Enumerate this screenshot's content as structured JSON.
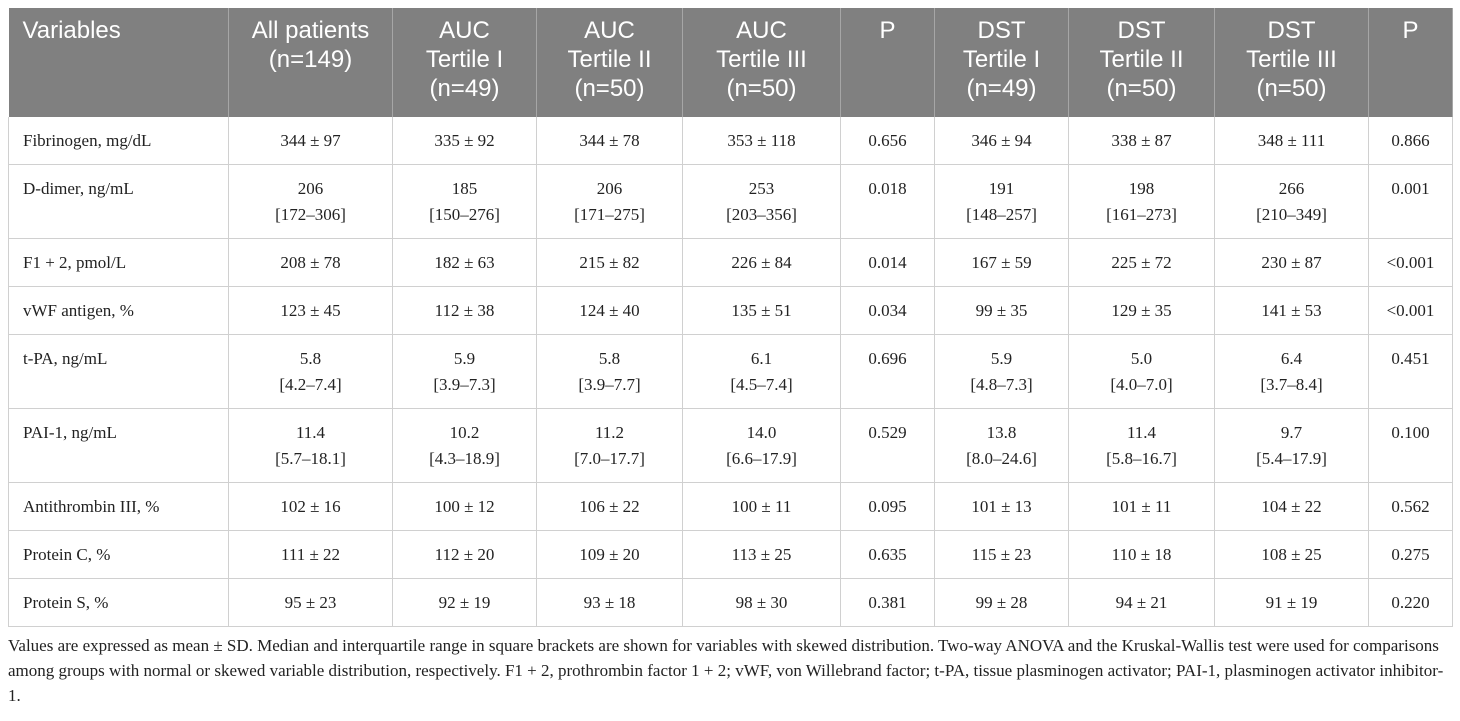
{
  "table": {
    "header": [
      [
        "Variables"
      ],
      [
        "All patients",
        "(n=149)"
      ],
      [
        "AUC",
        "Tertile I",
        "(n=49)"
      ],
      [
        "AUC",
        "Tertile II",
        "(n=50)"
      ],
      [
        "AUC",
        "Tertile III",
        "(n=50)"
      ],
      [
        "P"
      ],
      [
        "DST",
        "Tertile I",
        "(n=49)"
      ],
      [
        "DST",
        "Tertile II",
        "(n=50)"
      ],
      [
        "DST",
        "Tertile III",
        "(n=50)"
      ],
      [
        "P"
      ]
    ],
    "rows": [
      [
        "Fibrinogen, mg/dL",
        "344 ± 97",
        "335 ± 92",
        "344 ± 78",
        "353 ± 118",
        "0.656",
        "346 ± 94",
        "338 ± 87",
        "348 ± 111",
        "0.866"
      ],
      [
        "D-dimer, ng/mL",
        [
          "206",
          "[172–306]"
        ],
        [
          "185",
          "[150–276]"
        ],
        [
          "206",
          "[171–275]"
        ],
        [
          "253",
          "[203–356]"
        ],
        "0.018",
        [
          "191",
          "[148–257]"
        ],
        [
          "198",
          "[161–273]"
        ],
        [
          "266",
          "[210–349]"
        ],
        "0.001"
      ],
      [
        "F1 + 2, pmol/L",
        "208 ± 78",
        "182 ± 63",
        "215 ± 82",
        "226 ± 84",
        "0.014",
        "167 ± 59",
        "225 ± 72",
        "230 ± 87",
        "<0.001"
      ],
      [
        "vWF antigen, %",
        "123 ± 45",
        "112 ± 38",
        "124 ± 40",
        "135 ± 51",
        "0.034",
        "99 ± 35",
        "129 ± 35",
        "141 ± 53",
        "<0.001"
      ],
      [
        "t-PA, ng/mL",
        [
          "5.8",
          "[4.2–7.4]"
        ],
        [
          "5.9",
          "[3.9–7.3]"
        ],
        [
          "5.8",
          "[3.9–7.7]"
        ],
        [
          "6.1",
          "[4.5–7.4]"
        ],
        "0.696",
        [
          "5.9",
          "[4.8–7.3]"
        ],
        [
          "5.0",
          "[4.0–7.0]"
        ],
        [
          "6.4",
          "[3.7–8.4]"
        ],
        "0.451"
      ],
      [
        "PAI-1, ng/mL",
        [
          "11.4",
          "[5.7–18.1]"
        ],
        [
          "10.2",
          "[4.3–18.9]"
        ],
        [
          "11.2",
          "[7.0–17.7]"
        ],
        [
          "14.0",
          "[6.6–17.9]"
        ],
        "0.529",
        [
          "13.8",
          "[8.0–24.6]"
        ],
        [
          "11.4",
          "[5.8–16.7]"
        ],
        [
          "9.7",
          "[5.4–17.9]"
        ],
        "0.100"
      ],
      [
        "Antithrombin III, %",
        "102 ± 16",
        "100 ± 12",
        "106 ± 22",
        "100 ± 11",
        "0.095",
        "101 ± 13",
        "101 ± 11",
        "104 ± 22",
        "0.562"
      ],
      [
        "Protein C, %",
        "111 ± 22",
        "112 ± 20",
        "109 ± 20",
        "113 ± 25",
        "0.635",
        "115 ± 23",
        "110 ± 18",
        "108 ± 25",
        "0.275"
      ],
      [
        "Protein S, %",
        "95 ± 23",
        "92 ± 19",
        "93 ± 18",
        "98 ± 30",
        "0.381",
        "99 ± 28",
        "94 ± 21",
        "91 ± 19",
        "0.220"
      ]
    ],
    "footnote": "Values are expressed as mean ± SD. Median and interquartile range in square brackets are shown for variables with skewed distribution. Two-way ANOVA and the Kruskal-Wallis test were used for comparisons among groups with normal or skewed variable distribution, respectively. F1 + 2, prothrombin factor 1 + 2; vWF, von Willebrand factor; t-PA, tissue plasminogen activator; PAI-1, plasminogen activator inhibitor-1."
  }
}
